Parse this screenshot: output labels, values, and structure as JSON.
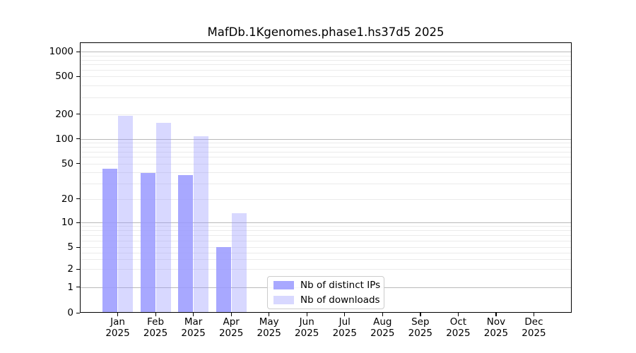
{
  "chart_data": {
    "type": "bar",
    "title": "MafDb.1Kgenomes.phase1.hs37d5 2025",
    "year": "2025",
    "categories": [
      "Jan",
      "Feb",
      "Mar",
      "Apr",
      "May",
      "Jun",
      "Jul",
      "Aug",
      "Sep",
      "Oct",
      "Nov",
      "Dec"
    ],
    "series": [
      {
        "name": "Nb of distinct IPs",
        "color": "rgba(153,153,255,0.85)",
        "values": [
          44,
          39,
          37,
          5,
          0,
          0,
          0,
          0,
          0,
          0,
          0,
          0
        ]
      },
      {
        "name": "Nb of downloads",
        "color": "rgba(153,153,255,0.38)",
        "values": [
          190,
          158,
          108,
          13,
          0,
          0,
          0,
          0,
          0,
          0,
          0,
          0
        ]
      }
    ],
    "y_ticks": [
      0,
      1,
      2,
      5,
      10,
      20,
      50,
      100,
      200,
      500,
      1000
    ],
    "y_minor_gridlines": [
      2,
      3,
      4,
      5,
      6,
      7,
      8,
      9,
      20,
      30,
      40,
      50,
      60,
      70,
      80,
      90,
      200,
      300,
      400,
      500,
      600,
      700,
      800,
      900
    ],
    "y_major_gridlines": [
      1,
      10,
      100,
      1000
    ],
    "y_scale": "log-like (0 at baseline)",
    "ylim": [
      0,
      1300
    ],
    "grid": "horizontal, major dark + minor light",
    "legend_position": "inside bottom-center",
    "colors": {
      "bars_distinct_ips": "#aaaaf5",
      "bars_downloads": "#dcdcfa",
      "major_grid": "#b9b9b9",
      "minor_grid": "#ebebeb",
      "axis": "#000000"
    }
  }
}
